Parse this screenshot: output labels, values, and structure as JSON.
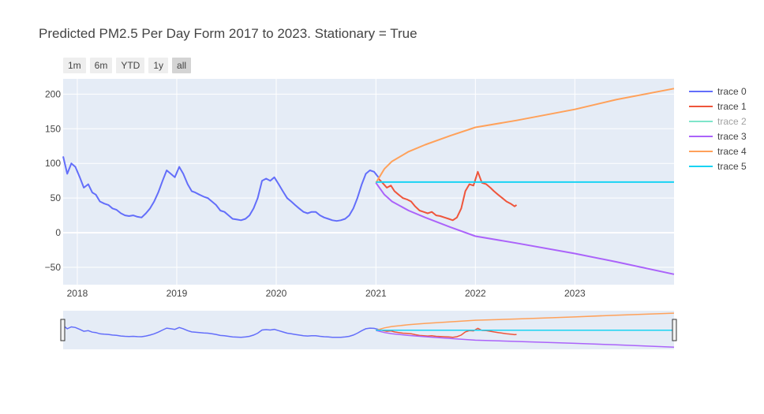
{
  "chart_data": {
    "type": "line",
    "title": "Predicted PM2.5 Per Day Form 2017 to 2023. Stationary = True",
    "xlabel": "",
    "ylabel": "",
    "x_range": [
      "2017-11-10",
      "2023-12-31"
    ],
    "ylim": [
      -75,
      222
    ],
    "y_ticks": [
      -50,
      0,
      50,
      100,
      150,
      200
    ],
    "x_ticks": [
      "2018",
      "2019",
      "2020",
      "2021",
      "2022",
      "2023"
    ],
    "x_tick_dates": [
      "2018-01-01",
      "2019-01-01",
      "2020-01-01",
      "2021-01-01",
      "2022-01-01",
      "2023-01-01"
    ],
    "grid": true,
    "legend_position": "right",
    "range_selector": [
      "1m",
      "6m",
      "YTD",
      "1y",
      "all"
    ],
    "range_selector_active": "all",
    "range_slider": true,
    "series": [
      {
        "name": "trace 0",
        "color": "#636efa",
        "x": [
          "2017-11-10",
          "2017-11-25",
          "2017-12-10",
          "2017-12-25",
          "2018-01-10",
          "2018-01-25",
          "2018-02-10",
          "2018-02-25",
          "2018-03-10",
          "2018-03-25",
          "2018-04-10",
          "2018-04-25",
          "2018-05-10",
          "2018-05-25",
          "2018-06-10",
          "2018-06-25",
          "2018-07-10",
          "2018-07-25",
          "2018-08-10",
          "2018-08-25",
          "2018-09-10",
          "2018-09-25",
          "2018-10-10",
          "2018-10-25",
          "2018-11-10",
          "2018-11-25",
          "2018-12-10",
          "2018-12-25",
          "2019-01-10",
          "2019-01-25",
          "2019-02-10",
          "2019-02-25",
          "2019-03-10",
          "2019-03-25",
          "2019-04-10",
          "2019-04-25",
          "2019-05-10",
          "2019-05-25",
          "2019-06-10",
          "2019-06-25",
          "2019-07-10",
          "2019-07-25",
          "2019-08-10",
          "2019-08-25",
          "2019-09-10",
          "2019-09-25",
          "2019-10-10",
          "2019-10-25",
          "2019-11-10",
          "2019-11-25",
          "2019-12-10",
          "2019-12-25",
          "2020-01-10",
          "2020-01-25",
          "2020-02-10",
          "2020-02-25",
          "2020-03-10",
          "2020-03-25",
          "2020-04-10",
          "2020-04-25",
          "2020-05-10",
          "2020-05-25",
          "2020-06-10",
          "2020-06-25",
          "2020-07-10",
          "2020-07-25",
          "2020-08-10",
          "2020-08-25",
          "2020-09-10",
          "2020-09-25",
          "2020-10-10",
          "2020-10-25",
          "2020-11-10",
          "2020-11-25",
          "2020-12-10",
          "2020-12-25",
          "2021-01-10"
        ],
        "values": [
          110,
          85,
          100,
          95,
          80,
          65,
          70,
          58,
          55,
          45,
          42,
          40,
          35,
          33,
          28,
          25,
          24,
          25,
          23,
          22,
          28,
          35,
          45,
          58,
          75,
          90,
          85,
          80,
          95,
          85,
          70,
          60,
          58,
          55,
          52,
          50,
          45,
          40,
          32,
          30,
          25,
          20,
          19,
          18,
          20,
          25,
          35,
          50,
          75,
          78,
          75,
          80,
          70,
          60,
          50,
          45,
          40,
          35,
          30,
          28,
          30,
          30,
          25,
          22,
          20,
          18,
          17,
          18,
          20,
          25,
          35,
          50,
          70,
          85,
          90,
          88,
          80
        ]
      },
      {
        "name": "trace 1",
        "color": "#ef553b",
        "x": [
          "2021-01-10",
          "2021-01-25",
          "2021-02-10",
          "2021-02-25",
          "2021-03-10",
          "2021-03-25",
          "2021-04-10",
          "2021-04-25",
          "2021-05-10",
          "2021-05-25",
          "2021-06-10",
          "2021-06-25",
          "2021-07-10",
          "2021-07-25",
          "2021-08-10",
          "2021-08-25",
          "2021-09-10",
          "2021-09-25",
          "2021-10-10",
          "2021-10-25",
          "2021-11-10",
          "2021-11-25",
          "2021-12-10",
          "2021-12-25",
          "2022-01-10",
          "2022-01-25",
          "2022-02-10",
          "2022-02-25",
          "2022-03-10",
          "2022-03-25",
          "2022-04-10",
          "2022-04-25",
          "2022-05-10",
          "2022-05-25",
          "2022-06-01"
        ],
        "values": [
          78,
          72,
          65,
          68,
          60,
          55,
          50,
          48,
          45,
          38,
          32,
          30,
          28,
          30,
          25,
          24,
          22,
          20,
          18,
          22,
          35,
          60,
          70,
          68,
          88,
          72,
          70,
          65,
          60,
          55,
          50,
          45,
          42,
          38,
          40
        ]
      },
      {
        "name": "trace 2",
        "color": "#00cc96",
        "x": [],
        "values": []
      },
      {
        "name": "trace 3",
        "color": "#ab63fa",
        "x": [
          "2021-01-01",
          "2021-02-01",
          "2021-03-01",
          "2021-05-01",
          "2021-07-01",
          "2021-10-01",
          "2022-01-01",
          "2022-06-01",
          "2023-01-01",
          "2023-06-01",
          "2023-12-31"
        ],
        "values": [
          72,
          55,
          45,
          32,
          22,
          8,
          -5,
          -15,
          -30,
          -42,
          -60
        ]
      },
      {
        "name": "trace 4",
        "color": "#ffa15a",
        "x": [
          "2021-01-01",
          "2021-02-01",
          "2021-03-01",
          "2021-05-01",
          "2021-07-01",
          "2021-10-01",
          "2022-01-01",
          "2022-06-01",
          "2023-01-01",
          "2023-06-01",
          "2023-12-31"
        ],
        "values": [
          72,
          92,
          103,
          117,
          127,
          140,
          152,
          162,
          178,
          192,
          208
        ]
      },
      {
        "name": "trace 5",
        "color": "#19d3f3",
        "x": [
          "2021-01-01",
          "2023-12-31"
        ],
        "values": [
          73,
          73
        ]
      }
    ]
  }
}
